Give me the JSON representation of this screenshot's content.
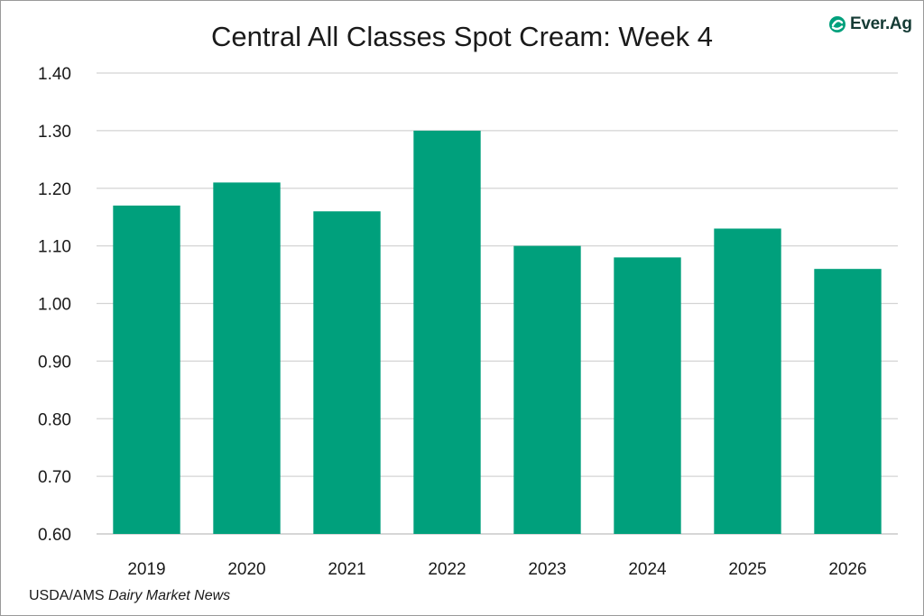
{
  "brand": {
    "name": "Ever.Ag",
    "icon": "ever-ag-logo-icon",
    "accent": "#00A07C"
  },
  "source": {
    "prefix": "USDA/AMS ",
    "publication": "Dairy Market News"
  },
  "chart_data": {
    "type": "bar",
    "title": "Central All Classes Spot Cream: Week 4",
    "xlabel": "",
    "ylabel": "",
    "categories": [
      "2019",
      "2020",
      "2021",
      "2022",
      "2023",
      "2024",
      "2025",
      "2026"
    ],
    "values": [
      1.17,
      1.21,
      1.16,
      1.3,
      1.1,
      1.08,
      1.13,
      1.06
    ],
    "ylim": [
      0.6,
      1.4
    ],
    "yticks": [
      "0.60",
      "0.70",
      "0.80",
      "0.90",
      "1.00",
      "1.10",
      "1.20",
      "1.30",
      "1.40"
    ],
    "bar_color": "#00A07C",
    "grid": true,
    "legend": "none"
  }
}
